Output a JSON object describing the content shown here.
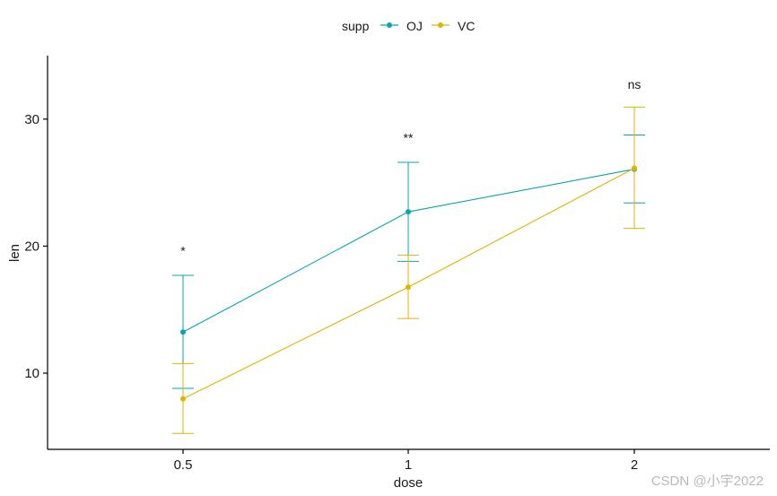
{
  "chart_data": {
    "type": "line",
    "xlabel": "dose",
    "ylabel": "len",
    "categories": [
      "0.5",
      "1",
      "2"
    ],
    "ylim": [
      4.0,
      35.0
    ],
    "yticks": [
      10,
      20,
      30
    ],
    "legend": {
      "title": "supp",
      "position": "top"
    },
    "series": [
      {
        "name": "OJ",
        "color": "#0aa3b0",
        "values": [
          13.23,
          22.7,
          26.06
        ],
        "err_low": [
          8.8,
          18.8,
          23.4
        ],
        "err_high": [
          17.7,
          26.6,
          28.75
        ]
      },
      {
        "name": "VC",
        "color": "#dfb400",
        "values": [
          7.98,
          16.77,
          26.14
        ],
        "err_low": [
          5.25,
          14.3,
          21.4
        ],
        "err_high": [
          10.75,
          19.3,
          30.95
        ]
      }
    ],
    "annotations": [
      {
        "category": "0.5",
        "text": "*",
        "y": 19.3
      },
      {
        "category": "1",
        "text": "**",
        "y": 28.2
      },
      {
        "category": "2",
        "text": "ns",
        "y": 32.4
      }
    ]
  },
  "watermark": "CSDN @小宇2022"
}
